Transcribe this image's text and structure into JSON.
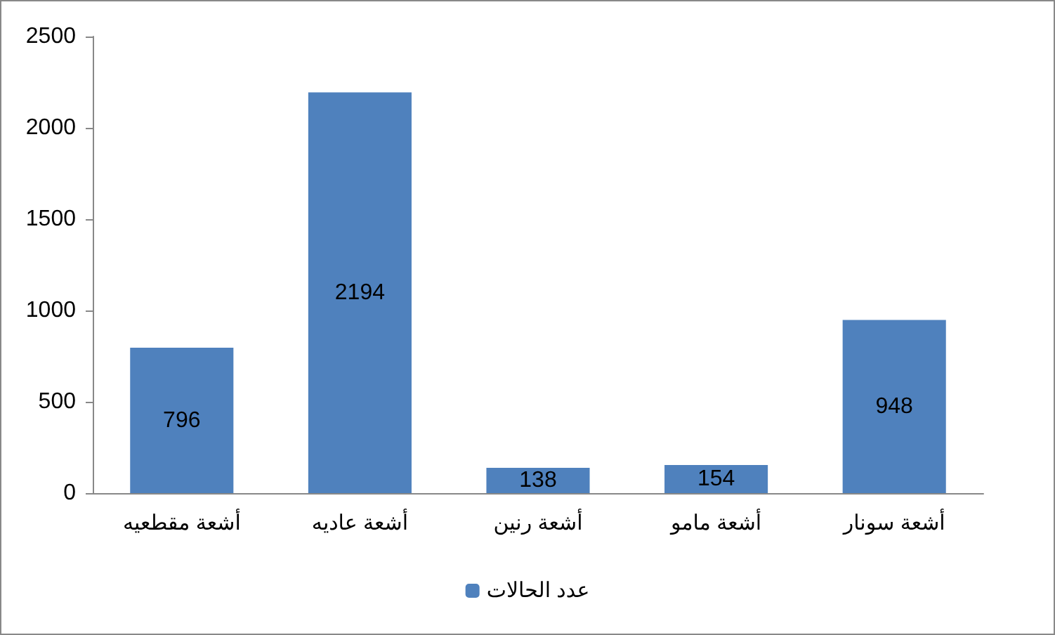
{
  "chart_data": {
    "type": "bar",
    "categories": [
      "أشعة مقطعيه",
      "أشعة عاديه",
      "أشعة رنين",
      "أشعة مامو",
      "أشعة سونار"
    ],
    "series": [
      {
        "name": "عدد الحالات",
        "color": "#4f81bd",
        "values": [
          796,
          2194,
          138,
          154,
          948
        ]
      }
    ],
    "ylim": [
      0,
      2500
    ],
    "yticks": [
      0,
      500,
      1000,
      1500,
      2000,
      2500
    ],
    "grid": false,
    "legend": "bottom",
    "data_labels": true
  }
}
